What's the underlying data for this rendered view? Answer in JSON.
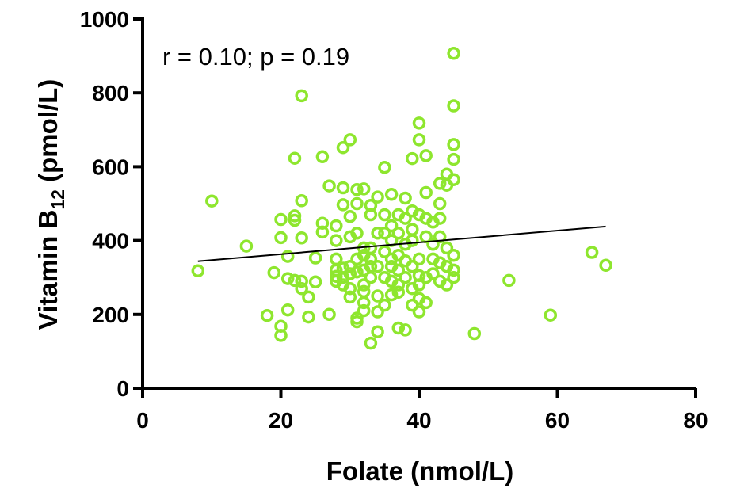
{
  "chart_data": {
    "type": "scatter",
    "title": "",
    "xlabel": "Folate (nmol/L)",
    "ylabel": {
      "prefix": "Vitamin B",
      "subscript": "12",
      "suffix": " (pmol/L)"
    },
    "xlim": [
      0,
      80
    ],
    "ylim": [
      0,
      1000
    ],
    "xticks": [
      0,
      20,
      40,
      60,
      80
    ],
    "yticks": [
      0,
      200,
      400,
      600,
      800,
      1000
    ],
    "grid": false,
    "annotation": "r = 0.10; p = 0.19",
    "marker_color": "#8ee62e",
    "line_color": "#000000",
    "regression_line": {
      "x": [
        8,
        67
      ],
      "y": [
        344,
        438
      ]
    },
    "points": [
      [
        8,
        318
      ],
      [
        10,
        507
      ],
      [
        15,
        385
      ],
      [
        18,
        197
      ],
      [
        19,
        313
      ],
      [
        20,
        143
      ],
      [
        20,
        168
      ],
      [
        20,
        408
      ],
      [
        20,
        457
      ],
      [
        21,
        357
      ],
      [
        21,
        297
      ],
      [
        21,
        212
      ],
      [
        22,
        623
      ],
      [
        22,
        467
      ],
      [
        22,
        455
      ],
      [
        22,
        292
      ],
      [
        23,
        792
      ],
      [
        23,
        508
      ],
      [
        23,
        407
      ],
      [
        23,
        290
      ],
      [
        23,
        270
      ],
      [
        24,
        193
      ],
      [
        24,
        247
      ],
      [
        25,
        353
      ],
      [
        25,
        288
      ],
      [
        26,
        627
      ],
      [
        26,
        447
      ],
      [
        26,
        423
      ],
      [
        27,
        548
      ],
      [
        27,
        200
      ],
      [
        28,
        440
      ],
      [
        28,
        400
      ],
      [
        28,
        350
      ],
      [
        28,
        320
      ],
      [
        28,
        303
      ],
      [
        28,
        290
      ],
      [
        29,
        652
      ],
      [
        29,
        543
      ],
      [
        29,
        497
      ],
      [
        29,
        325
      ],
      [
        29,
        300
      ],
      [
        29,
        280
      ],
      [
        30,
        673
      ],
      [
        30,
        465
      ],
      [
        30,
        410
      ],
      [
        30,
        330
      ],
      [
        30,
        310
      ],
      [
        30,
        270
      ],
      [
        30,
        247
      ],
      [
        31,
        538
      ],
      [
        31,
        500
      ],
      [
        31,
        420
      ],
      [
        31,
        350
      ],
      [
        31,
        315
      ],
      [
        31,
        190
      ],
      [
        31,
        180
      ],
      [
        32,
        540
      ],
      [
        32,
        380
      ],
      [
        32,
        360
      ],
      [
        32,
        320
      ],
      [
        32,
        280
      ],
      [
        32,
        262
      ],
      [
        32,
        232
      ],
      [
        32,
        210
      ],
      [
        33,
        495
      ],
      [
        33,
        470
      ],
      [
        33,
        380
      ],
      [
        33,
        350
      ],
      [
        33,
        330
      ],
      [
        33,
        300
      ],
      [
        33,
        122
      ],
      [
        34,
        518
      ],
      [
        34,
        420
      ],
      [
        34,
        330
      ],
      [
        34,
        250
      ],
      [
        34,
        207
      ],
      [
        34,
        153
      ],
      [
        35,
        598
      ],
      [
        35,
        470
      ],
      [
        35,
        420
      ],
      [
        35,
        370
      ],
      [
        35,
        300
      ],
      [
        35,
        225
      ],
      [
        36,
        525
      ],
      [
        36,
        440
      ],
      [
        36,
        400
      ],
      [
        36,
        350
      ],
      [
        36,
        330
      ],
      [
        36,
        290
      ],
      [
        36,
        253
      ],
      [
        37,
        470
      ],
      [
        37,
        420
      ],
      [
        37,
        360
      ],
      [
        37,
        320
      ],
      [
        37,
        280
      ],
      [
        37,
        260
      ],
      [
        37,
        163
      ],
      [
        38,
        515
      ],
      [
        38,
        460
      ],
      [
        38,
        390
      ],
      [
        38,
        345
      ],
      [
        38,
        300
      ],
      [
        38,
        158
      ],
      [
        39,
        622
      ],
      [
        39,
        480
      ],
      [
        39,
        430
      ],
      [
        39,
        400
      ],
      [
        39,
        330
      ],
      [
        39,
        270
      ],
      [
        39,
        225
      ],
      [
        40,
        718
      ],
      [
        40,
        673
      ],
      [
        40,
        470
      ],
      [
        40,
        350
      ],
      [
        40,
        305
      ],
      [
        40,
        280
      ],
      [
        40,
        243
      ],
      [
        40,
        207
      ],
      [
        41,
        630
      ],
      [
        41,
        530
      ],
      [
        41,
        460
      ],
      [
        41,
        410
      ],
      [
        41,
        300
      ],
      [
        41,
        232
      ],
      [
        42,
        450
      ],
      [
        42,
        390
      ],
      [
        42,
        350
      ],
      [
        42,
        310
      ],
      [
        43,
        555
      ],
      [
        43,
        500
      ],
      [
        43,
        460
      ],
      [
        43,
        410
      ],
      [
        43,
        340
      ],
      [
        43,
        290
      ],
      [
        44,
        580
      ],
      [
        44,
        550
      ],
      [
        44,
        380
      ],
      [
        44,
        330
      ],
      [
        44,
        280
      ],
      [
        45,
        907
      ],
      [
        45,
        765
      ],
      [
        45,
        660
      ],
      [
        45,
        620
      ],
      [
        45,
        565
      ],
      [
        45,
        360
      ],
      [
        45,
        320
      ],
      [
        45,
        300
      ],
      [
        48,
        148
      ],
      [
        53,
        292
      ],
      [
        59,
        198
      ],
      [
        65,
        368
      ],
      [
        67,
        333
      ]
    ]
  }
}
